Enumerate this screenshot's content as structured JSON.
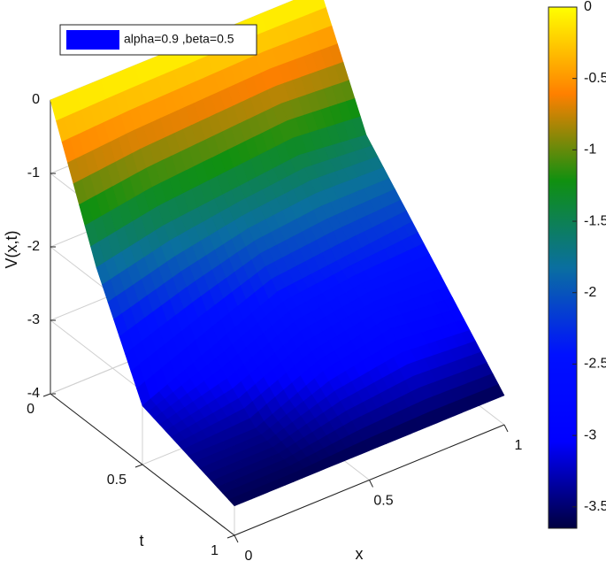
{
  "chart_data": {
    "type": "surface",
    "xlabel": "x",
    "ylabel": "t",
    "zlabel": "V(x,t)",
    "legend": {
      "label": "alpha=0.9 ,beta=0.5",
      "color": "#0000ff"
    },
    "x": [
      0,
      0.25,
      0.5,
      0.75,
      1
    ],
    "y": [
      0,
      0.25,
      0.5,
      0.75,
      1
    ],
    "z": [
      [
        0,
        0,
        0,
        0,
        0
      ],
      [
        -1.8,
        -1.6,
        -1.5,
        -1.4,
        -1.5
      ],
      [
        -3.2,
        -2.8,
        -2.4,
        -2.3,
        -2.2
      ],
      [
        -3.4,
        -3.4,
        -3.0,
        -2.8,
        -2.9
      ],
      [
        -3.6,
        -3.6,
        -3.6,
        -3.6,
        -3.6
      ]
    ],
    "xlim": [
      0,
      1
    ],
    "xticks": [
      0,
      0.5,
      1
    ],
    "ylim": [
      0,
      1
    ],
    "yticks": [
      0,
      0.5,
      1
    ],
    "zlim": [
      -4,
      0
    ],
    "zticks": [
      0,
      -1,
      -2,
      -3,
      -4
    ],
    "grid": true,
    "colormap": [
      "#000040",
      "#0000ff",
      "#0010ff",
      "#0a6fa0",
      "#109010",
      "#ff8000",
      "#ffff00"
    ],
    "clim": [
      -3.65,
      0
    ],
    "cticks": [
      0,
      -0.5,
      -1,
      -1.5,
      -2,
      -2.5,
      -3,
      -3.5
    ]
  }
}
